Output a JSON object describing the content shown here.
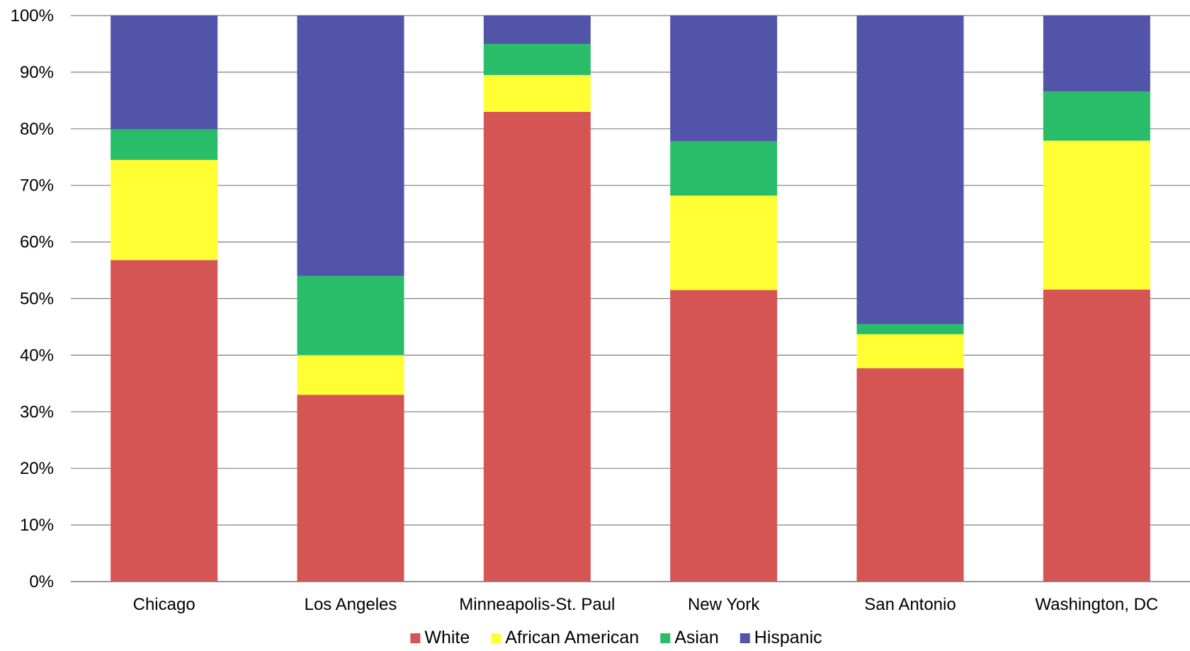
{
  "chart_data": {
    "type": "bar",
    "stacked": true,
    "percent_stacked": true,
    "categories": [
      "Chicago",
      "Los Angeles",
      "Minneapolis-St. Paul",
      "New York",
      "San Antonio",
      "Washington, DC"
    ],
    "series": [
      {
        "name": "White",
        "color": "#d55454",
        "values": [
          56.8,
          33.0,
          83.0,
          51.5,
          37.7,
          51.6
        ]
      },
      {
        "name": "African American",
        "color": "#ffff33",
        "values": [
          17.7,
          7.0,
          6.5,
          16.7,
          6.0,
          26.3
        ]
      },
      {
        "name": "Asian",
        "color": "#29bd6a",
        "values": [
          5.4,
          14.0,
          5.5,
          9.6,
          1.8,
          8.7
        ]
      },
      {
        "name": "Hispanic",
        "color": "#5254aa",
        "values": [
          20.1,
          46.0,
          5.0,
          22.2,
          54.5,
          13.4
        ]
      }
    ],
    "y_ticks": [
      "0%",
      "10%",
      "20%",
      "30%",
      "40%",
      "50%",
      "60%",
      "70%",
      "80%",
      "90%",
      "100%"
    ],
    "ylim": [
      0,
      100
    ],
    "grid": true,
    "gridline_color": "#808080",
    "legend_position": "bottom",
    "title": "",
    "xlabel": "",
    "ylabel": ""
  }
}
